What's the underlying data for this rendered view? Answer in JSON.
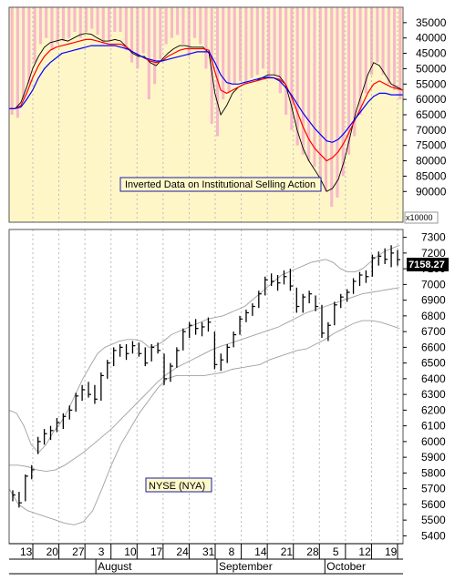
{
  "chart_data": [
    {
      "type": "bar",
      "subtype": "inverted indicator with moving averages",
      "annotation": "Inverted Data on Institutional Selling Action",
      "inverted_axis": true,
      "ylim": [
        100000,
        30000
      ],
      "y_ticks": [
        35000,
        40000,
        45000,
        50000,
        55000,
        60000,
        65000,
        70000,
        75000,
        80000,
        85000,
        90000
      ],
      "multiplier_label": "x10000",
      "background_color": "#fff6c8",
      "bar_color": "#f7b8c8",
      "series": [
        {
          "name": "",
          "color": "#f7b8c8",
          "kind": "daily_bars",
          "values": [
            65000,
            66000,
            60000,
            55000,
            48000,
            42000,
            40000,
            44000,
            42000,
            41000,
            40000,
            38000,
            40000,
            38000,
            37000,
            39000,
            42000,
            41000,
            38000,
            38000,
            44000,
            48000,
            50000,
            45000,
            60000,
            55000,
            47000,
            42000,
            40000,
            39000,
            42000,
            46000,
            40000,
            42000,
            50000,
            68000,
            72000,
            60000,
            58000,
            55000,
            54000,
            55000,
            53000,
            52000,
            50000,
            53000,
            52000,
            58000,
            65000,
            70000,
            75000,
            78000,
            80000,
            82000,
            88000,
            90000,
            95000,
            92000,
            85000,
            78000,
            72000,
            65000,
            58000,
            52000,
            48000,
            52000,
            55000,
            57000,
            60000
          ]
        },
        {
          "name": "",
          "color": "#000000",
          "kind": "fast_ma",
          "values": [
            63000,
            63000,
            61000,
            56000,
            50000,
            46000,
            43000,
            41500,
            41000,
            40500,
            41000,
            40000,
            39000,
            38500,
            38800,
            40000,
            41000,
            41000,
            40500,
            41000,
            43000,
            45000,
            46000,
            46000,
            48000,
            49000,
            47000,
            45000,
            43500,
            42500,
            42500,
            43000,
            43000,
            43000,
            45000,
            58000,
            65000,
            62000,
            58000,
            56000,
            55000,
            54500,
            54000,
            53000,
            52000,
            52000,
            52500,
            55000,
            62000,
            70000,
            76000,
            80000,
            83000,
            86000,
            90000,
            89000,
            86000,
            80000,
            72000,
            64000,
            58000,
            52000,
            48000,
            49000,
            52000,
            55000,
            56000,
            57000
          ]
        },
        {
          "name": "",
          "color": "#ff0000",
          "kind": "medium_ma",
          "values": [
            63000,
            63000,
            62000,
            58000,
            53000,
            49000,
            46000,
            44000,
            43000,
            42500,
            42000,
            41500,
            41000,
            40500,
            40500,
            41000,
            41500,
            42000,
            42000,
            42000,
            43000,
            44500,
            45500,
            46500,
            47500,
            48000,
            47500,
            46000,
            45000,
            44000,
            43500,
            43500,
            43500,
            43500,
            44000,
            51000,
            57000,
            58000,
            57000,
            56000,
            55000,
            54500,
            54000,
            53500,
            53000,
            53000,
            53500,
            55000,
            59000,
            64000,
            69000,
            73000,
            76000,
            78000,
            80000,
            79000,
            77000,
            74000,
            70000,
            66000,
            62000,
            58000,
            55000,
            54000,
            55000,
            56000,
            56500,
            57000
          ]
        },
        {
          "name": "",
          "color": "#0000ff",
          "kind": "slow_ma",
          "values": [
            63000,
            63000,
            62500,
            60000,
            57000,
            53000,
            50000,
            48000,
            46500,
            45000,
            44500,
            44000,
            43500,
            43000,
            42500,
            42500,
            42500,
            42500,
            42500,
            43000,
            43500,
            44500,
            45500,
            46500,
            47000,
            47500,
            47500,
            47000,
            46500,
            46000,
            45500,
            45000,
            44500,
            44500,
            44500,
            48000,
            52000,
            54500,
            55000,
            55000,
            54500,
            54000,
            53500,
            53000,
            52800,
            53000,
            54000,
            56000,
            58500,
            61500,
            64500,
            67000,
            69500,
            71500,
            73500,
            74000,
            73000,
            71000,
            68500,
            66000,
            63500,
            61000,
            59000,
            58000,
            58000,
            58500,
            58500,
            58500
          ]
        }
      ]
    },
    {
      "type": "candlestick",
      "subtype": "OHLC bars with Bollinger Bands and moving averages",
      "title": "NYSE (NYA)",
      "last_value": "7158.27",
      "ylim": [
        5350,
        7350
      ],
      "y_ticks": [
        7300,
        7200,
        7100,
        7000,
        6900,
        6800,
        6700,
        6600,
        6500,
        6400,
        6300,
        6200,
        6100,
        6000,
        5900,
        5800,
        5700,
        5600,
        5500,
        5400
      ],
      "x_tick_labels": [
        "13",
        "20",
        "27",
        "3",
        "10",
        "17",
        "24",
        "31",
        "8",
        "14",
        "21",
        "28",
        "5",
        "12",
        "19"
      ],
      "month_labels": [
        "August",
        "September",
        "October"
      ],
      "grid": "vertical dashed",
      "ohlc": [
        {
          "h": 5690,
          "l": 5620,
          "c": 5660
        },
        {
          "h": 5680,
          "l": 5580,
          "c": 5610
        },
        {
          "h": 5790,
          "l": 5620,
          "c": 5780
        },
        {
          "h": 5850,
          "l": 5760,
          "c": 5820
        },
        {
          "h": 6030,
          "l": 5920,
          "c": 6000
        },
        {
          "h": 6080,
          "l": 5980,
          "c": 6050
        },
        {
          "h": 6100,
          "l": 6010,
          "c": 6070
        },
        {
          "h": 6150,
          "l": 6060,
          "c": 6120
        },
        {
          "h": 6180,
          "l": 6080,
          "c": 6160
        },
        {
          "h": 6230,
          "l": 6140,
          "c": 6200
        },
        {
          "h": 6310,
          "l": 6190,
          "c": 6290
        },
        {
          "h": 6360,
          "l": 6260,
          "c": 6330
        },
        {
          "h": 6380,
          "l": 6280,
          "c": 6300
        },
        {
          "h": 6360,
          "l": 6240,
          "c": 6270
        },
        {
          "h": 6440,
          "l": 6260,
          "c": 6420
        },
        {
          "h": 6520,
          "l": 6400,
          "c": 6500
        },
        {
          "h": 6600,
          "l": 6480,
          "c": 6580
        },
        {
          "h": 6620,
          "l": 6540,
          "c": 6600
        },
        {
          "h": 6620,
          "l": 6520,
          "c": 6560
        },
        {
          "h": 6640,
          "l": 6560,
          "c": 6610
        },
        {
          "h": 6630,
          "l": 6540,
          "c": 6560
        },
        {
          "h": 6600,
          "l": 6480,
          "c": 6500
        },
        {
          "h": 6620,
          "l": 6510,
          "c": 6600
        },
        {
          "h": 6630,
          "l": 6560,
          "c": 6580
        },
        {
          "h": 6560,
          "l": 6360,
          "c": 6400
        },
        {
          "h": 6500,
          "l": 6380,
          "c": 6480
        },
        {
          "h": 6600,
          "l": 6470,
          "c": 6580
        },
        {
          "h": 6720,
          "l": 6580,
          "c": 6700
        },
        {
          "h": 6760,
          "l": 6660,
          "c": 6740
        },
        {
          "h": 6780,
          "l": 6680,
          "c": 6720
        },
        {
          "h": 6760,
          "l": 6670,
          "c": 6730
        },
        {
          "h": 6790,
          "l": 6700,
          "c": 6760
        },
        {
          "h": 6700,
          "l": 6460,
          "c": 6490
        },
        {
          "h": 6560,
          "l": 6450,
          "c": 6520
        },
        {
          "h": 6620,
          "l": 6500,
          "c": 6600
        },
        {
          "h": 6700,
          "l": 6600,
          "c": 6680
        },
        {
          "h": 6800,
          "l": 6680,
          "c": 6780
        },
        {
          "h": 6840,
          "l": 6760,
          "c": 6820
        },
        {
          "h": 6880,
          "l": 6800,
          "c": 6860
        },
        {
          "h": 6960,
          "l": 6850,
          "c": 6940
        },
        {
          "h": 7050,
          "l": 6930,
          "c": 7030
        },
        {
          "h": 7070,
          "l": 6990,
          "c": 7020
        },
        {
          "h": 7060,
          "l": 6960,
          "c": 7010
        },
        {
          "h": 7090,
          "l": 7000,
          "c": 7050
        },
        {
          "h": 7100,
          "l": 6960,
          "c": 6990
        },
        {
          "h": 6980,
          "l": 6820,
          "c": 6860
        },
        {
          "h": 6940,
          "l": 6820,
          "c": 6920
        },
        {
          "h": 6960,
          "l": 6880,
          "c": 6940
        },
        {
          "h": 6930,
          "l": 6830,
          "c": 6860
        },
        {
          "h": 6870,
          "l": 6660,
          "c": 6690
        },
        {
          "h": 6760,
          "l": 6640,
          "c": 6740
        },
        {
          "h": 6890,
          "l": 6740,
          "c": 6870
        },
        {
          "h": 6940,
          "l": 6850,
          "c": 6920
        },
        {
          "h": 6970,
          "l": 6890,
          "c": 6950
        },
        {
          "h": 7040,
          "l": 6940,
          "c": 7020
        },
        {
          "h": 7080,
          "l": 6990,
          "c": 7060
        },
        {
          "h": 7090,
          "l": 7010,
          "c": 7050
        },
        {
          "h": 7190,
          "l": 7050,
          "c": 7170
        },
        {
          "h": 7210,
          "l": 7120,
          "c": 7180
        },
        {
          "h": 7230,
          "l": 7130,
          "c": 7160
        },
        {
          "h": 7250,
          "l": 7110,
          "c": 7200
        },
        {
          "h": 7220,
          "l": 7120,
          "c": 7158
        }
      ],
      "bands": [
        {
          "name": "upper",
          "color": "#a0a0a0",
          "values": [
            6200,
            6180,
            6100,
            5980,
            5930,
            5980,
            6060,
            6120,
            6200,
            6300,
            6400,
            6480,
            6560,
            6600,
            6620,
            6640,
            6650,
            6650,
            6640,
            6600,
            6610,
            6640,
            6680,
            6700,
            6720,
            6740,
            6760,
            6780,
            6790,
            6800,
            6820,
            6840,
            6860,
            6900,
            6940,
            6980,
            7020,
            7060,
            7080,
            7100,
            7120,
            7140,
            7150,
            7160,
            7140,
            7100,
            7080,
            7080,
            7100,
            7140,
            7180,
            7210,
            7230,
            7250
          ]
        },
        {
          "name": "middle",
          "color": "#a0a0a0",
          "values": [
            5850,
            5850,
            5840,
            5820,
            5810,
            5820,
            5850,
            5890,
            5930,
            5980,
            6030,
            6080,
            6140,
            6200,
            6260,
            6320,
            6380,
            6430,
            6470,
            6500,
            6530,
            6560,
            6590,
            6610,
            6630,
            6650,
            6670,
            6690,
            6710,
            6730,
            6760,
            6790,
            6820,
            6840,
            6860,
            6880,
            6900,
            6920,
            6940,
            6950,
            6960,
            6970,
            6980
          ]
        },
        {
          "name": "lower",
          "color": "#a0a0a0",
          "values": [
            5700,
            5600,
            5560,
            5540,
            5520,
            5500,
            5480,
            5470,
            5490,
            5560,
            5700,
            5850,
            5980,
            6080,
            6180,
            6260,
            6340,
            6400,
            6420,
            6420,
            6420,
            6420,
            6430,
            6440,
            6460,
            6470,
            6480,
            6490,
            6520,
            6540,
            6560,
            6580,
            6590,
            6620,
            6650,
            6690,
            6720,
            6750,
            6770,
            6770,
            6760,
            6740,
            6720
          ]
        }
      ]
    }
  ]
}
